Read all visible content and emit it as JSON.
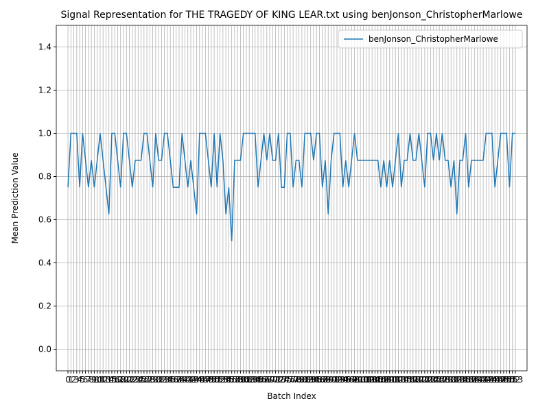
{
  "chart_data": {
    "type": "line",
    "title": "Signal Representation for THE TRAGEDY OF KING LEAR.txt using benJonson_ChristopherMarlowe",
    "xlabel": "Batch Index",
    "ylabel": "Mean Prediction Value",
    "x": [
      0,
      1,
      2,
      3,
      4,
      5,
      6,
      7,
      8,
      9,
      10,
      11,
      12,
      13,
      14,
      15,
      16,
      17,
      18,
      19,
      20,
      21,
      22,
      23,
      24,
      25,
      26,
      27,
      28,
      29,
      30,
      31,
      32,
      33,
      34,
      35,
      36,
      37,
      38,
      39,
      40,
      41,
      42,
      43,
      44,
      45,
      46,
      47,
      48,
      49,
      50,
      51,
      52,
      53,
      54,
      55,
      56,
      57,
      58,
      59,
      60,
      61,
      62,
      63,
      64,
      65,
      66,
      67,
      68,
      69,
      70,
      71,
      72,
      73,
      74,
      75,
      76,
      77,
      78,
      79,
      80,
      81,
      82,
      83,
      84,
      85,
      86,
      87,
      88,
      89,
      90,
      91,
      92,
      93,
      94,
      95,
      96,
      97,
      98,
      99,
      100,
      101,
      102,
      103,
      104,
      105,
      106,
      107,
      108,
      109,
      110,
      111,
      112,
      113,
      114,
      115,
      116,
      117,
      118,
      119,
      120,
      121,
      122,
      123,
      124,
      125,
      126,
      127,
      128,
      129,
      130,
      131,
      132,
      133,
      134,
      135,
      136,
      137,
      138,
      139,
      140,
      141,
      142,
      143,
      144,
      145,
      146,
      147,
      148,
      149,
      150,
      151,
      152,
      153
    ],
    "series": [
      {
        "name": "benJonson_ChristopherMarlowe",
        "color": "#1f77b4",
        "values": [
          0.75,
          1.0,
          1.0,
          1.0,
          0.75,
          1.0,
          0.875,
          0.75,
          0.875,
          0.75,
          0.875,
          1.0,
          0.875,
          0.75,
          0.625,
          1.0,
          1.0,
          0.875,
          0.75,
          1.0,
          1.0,
          0.875,
          0.75,
          0.875,
          0.875,
          0.875,
          1.0,
          1.0,
          0.875,
          0.75,
          1.0,
          0.875,
          0.875,
          1.0,
          1.0,
          0.875,
          0.75,
          0.75,
          0.75,
          1.0,
          0.875,
          0.75,
          0.875,
          0.75,
          0.625,
          1.0,
          1.0,
          1.0,
          0.875,
          0.75,
          1.0,
          0.75,
          1.0,
          0.875,
          0.625,
          0.75,
          0.5,
          0.875,
          0.875,
          0.875,
          1.0,
          1.0,
          1.0,
          1.0,
          1.0,
          0.75,
          0.875,
          1.0,
          0.875,
          1.0,
          0.875,
          0.875,
          1.0,
          0.75,
          0.75,
          1.0,
          1.0,
          0.75,
          0.875,
          0.875,
          0.75,
          1.0,
          1.0,
          1.0,
          0.875,
          1.0,
          1.0,
          0.75,
          0.875,
          0.625,
          0.875,
          1.0,
          1.0,
          1.0,
          0.75,
          0.875,
          0.75,
          0.875,
          1.0,
          0.875,
          0.875,
          0.875,
          0.875,
          0.875,
          0.875,
          0.875,
          0.875,
          0.75,
          0.875,
          0.75,
          0.875,
          0.75,
          0.875,
          1.0,
          0.75,
          0.875,
          0.875,
          1.0,
          0.875,
          0.875,
          1.0,
          0.875,
          0.75,
          1.0,
          1.0,
          0.875,
          1.0,
          0.875,
          1.0,
          0.875,
          0.875,
          0.75,
          0.875,
          0.625,
          0.875,
          0.875,
          1.0,
          0.75,
          0.875,
          0.875,
          0.875,
          0.875,
          0.875,
          1.0,
          1.0,
          1.0,
          0.75,
          0.875,
          1.0,
          1.0,
          1.0,
          0.75,
          1.0,
          1.0
        ]
      }
    ],
    "xlim": [
      -4,
      157
    ],
    "xticks": [
      0,
      1,
      2,
      3,
      4,
      5,
      6,
      7,
      8,
      9,
      10,
      11,
      12,
      13,
      14,
      15,
      16,
      17,
      18,
      19,
      20,
      21,
      22,
      23,
      24,
      25,
      26,
      27,
      28,
      29,
      30,
      31,
      32,
      33,
      34,
      35,
      36,
      37,
      38,
      39,
      40,
      41,
      42,
      43,
      44,
      45,
      46,
      47,
      48,
      49,
      50,
      51,
      52,
      53,
      54,
      55,
      56,
      57,
      58,
      59,
      60,
      61,
      62,
      63,
      64,
      65,
      66,
      67,
      68,
      69,
      70,
      71,
      72,
      73,
      74,
      75,
      76,
      77,
      78,
      79,
      80,
      81,
      82,
      83,
      84,
      85,
      86,
      87,
      88,
      89,
      90,
      91,
      92,
      93,
      94,
      95,
      96,
      97,
      98,
      99,
      100,
      101,
      102,
      103,
      104,
      105,
      106,
      107,
      108,
      109,
      110,
      111,
      112,
      113,
      114,
      115,
      116,
      117,
      118,
      119,
      120,
      121,
      122,
      123,
      124,
      125,
      126,
      127,
      128,
      129,
      130,
      131,
      132,
      133,
      134,
      135,
      136,
      137,
      138,
      139,
      140,
      141,
      142,
      143,
      144,
      145,
      146,
      147,
      148,
      149,
      150,
      151,
      152,
      153
    ],
    "ylim": [
      -0.1,
      1.5
    ],
    "yticks": [
      {
        "value": 0,
        "label": "0.0"
      },
      {
        "value": 0.2,
        "label": "0.2"
      },
      {
        "value": 0.4,
        "label": "0.4"
      },
      {
        "value": 0.6,
        "label": "0.6"
      },
      {
        "value": 0.8,
        "label": "0.8"
      },
      {
        "value": 1.0,
        "label": "1.0"
      },
      {
        "value": 1.2,
        "label": "1.2"
      },
      {
        "value": 1.4,
        "label": "1.4"
      }
    ],
    "grid": true,
    "legend": "upper right"
  }
}
